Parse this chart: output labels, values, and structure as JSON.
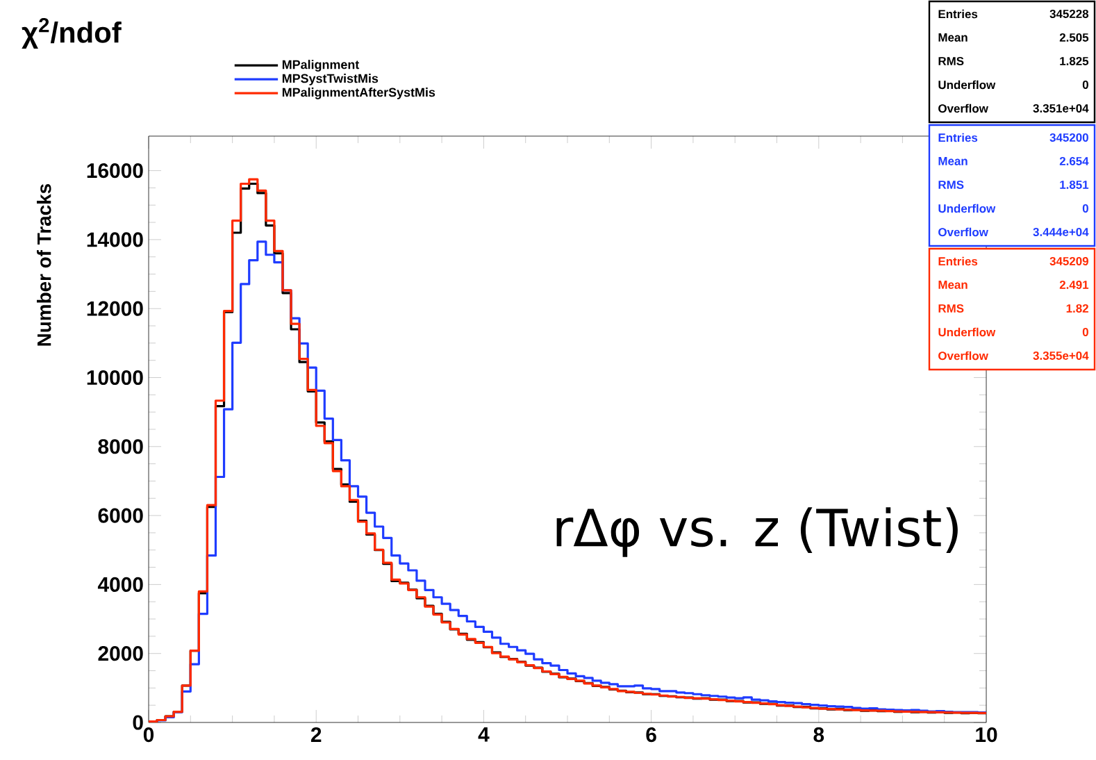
{
  "chart_data": {
    "type": "histogram",
    "title": "χ$^{2}$/ndof",
    "ylabel": "Number of Tracks",
    "bins": [
      0,
      0.1,
      0.2,
      0.3,
      0.4,
      0.5,
      0.6,
      0.7,
      0.8,
      0.9,
      1,
      1.1,
      1.2,
      1.3,
      1.4,
      1.5,
      1.6,
      1.7,
      1.8,
      1.9,
      2,
      2.1,
      2.2,
      2.3,
      2.4,
      2.5,
      2.6,
      2.7,
      2.8,
      2.9,
      3,
      3.1,
      3.2,
      3.3,
      3.4,
      3.5,
      3.6,
      3.7,
      3.8,
      3.9,
      4,
      4.1,
      4.2,
      4.3,
      4.4,
      4.5,
      4.6,
      4.7,
      4.8,
      4.9,
      5,
      5.1,
      5.2,
      5.3,
      5.4,
      5.5,
      5.6,
      5.7,
      5.8,
      5.9,
      6,
      6.1,
      6.2,
      6.3,
      6.4,
      6.5,
      6.6,
      6.7,
      6.8,
      6.9,
      7,
      7.1,
      7.2,
      7.3,
      7.4,
      7.5,
      7.6,
      7.7,
      7.8,
      7.9,
      8,
      8.1,
      8.2,
      8.3,
      8.4,
      8.5,
      8.6,
      8.7,
      8.8,
      8.9,
      9,
      9.1,
      9.2,
      9.3,
      9.4,
      9.5,
      9.6,
      9.7,
      9.8,
      9.9,
      10
    ],
    "series": [
      {
        "name": "MPalignment",
        "color": "#000000",
        "values": [
          30,
          70,
          180,
          310,
          1070,
          2080,
          3750,
          6250,
          9170,
          11900,
          14200,
          15480,
          15620,
          15350,
          14410,
          13600,
          12450,
          11400,
          10450,
          9600,
          8700,
          8150,
          7350,
          6900,
          6400,
          5850,
          5450,
          5000,
          4600,
          4100,
          4050,
          3850,
          3600,
          3380,
          3150,
          2920,
          2700,
          2570,
          2400,
          2330,
          2180,
          2030,
          1900,
          1840,
          1760,
          1650,
          1590,
          1470,
          1410,
          1310,
          1270,
          1200,
          1140,
          1060,
          1030,
          960,
          920,
          880,
          870,
          820,
          820,
          770,
          760,
          730,
          720,
          690,
          700,
          660,
          660,
          620,
          620,
          580,
          580,
          540,
          540,
          490,
          490,
          450,
          450,
          410,
          410,
          380,
          390,
          360,
          370,
          340,
          350,
          330,
          340,
          310,
          320,
          300,
          310,
          290,
          300,
          280,
          290,
          270,
          280,
          270
        ]
      },
      {
        "name": "MPSystTwistMis",
        "color": "#1f3cff",
        "values": [
          20,
          60,
          150,
          300,
          900,
          1690,
          3150,
          4840,
          7120,
          9080,
          11010,
          12710,
          13400,
          13940,
          13560,
          13340,
          12530,
          11720,
          10990,
          10290,
          9620,
          8810,
          8190,
          7600,
          6850,
          6550,
          6080,
          5680,
          5350,
          4840,
          4610,
          4410,
          4110,
          3840,
          3630,
          3440,
          3260,
          3090,
          2930,
          2770,
          2630,
          2460,
          2280,
          2190,
          2090,
          1990,
          1830,
          1720,
          1650,
          1520,
          1420,
          1340,
          1290,
          1210,
          1150,
          1110,
          1050,
          1050,
          1070,
          990,
          970,
          910,
          910,
          870,
          850,
          820,
          790,
          770,
          750,
          720,
          700,
          725,
          660,
          640,
          610,
          590,
          570,
          560,
          530,
          510,
          490,
          470,
          460,
          450,
          420,
          400,
          410,
          380,
          370,
          360,
          350,
          360,
          340,
          320,
          330,
          310,
          300,
          300,
          300,
          290
        ]
      },
      {
        "name": "MPalignmentAfterSystMis",
        "color": "#ff2a00",
        "values": [
          30,
          70,
          180,
          310,
          1070,
          2080,
          3800,
          6300,
          9330,
          11930,
          14550,
          15620,
          15750,
          15420,
          14550,
          13670,
          12530,
          11560,
          10540,
          9640,
          8600,
          8100,
          7290,
          6850,
          6450,
          5820,
          5480,
          5010,
          4630,
          4140,
          4030,
          3840,
          3630,
          3360,
          3130,
          2900,
          2710,
          2550,
          2420,
          2310,
          2190,
          2010,
          1910,
          1830,
          1750,
          1660,
          1580,
          1480,
          1400,
          1320,
          1260,
          1210,
          1130,
          1070,
          1020,
          970,
          910,
          890,
          860,
          830,
          810,
          780,
          750,
          740,
          710,
          700,
          690,
          670,
          650,
          630,
          610,
          590,
          570,
          550,
          530,
          500,
          480,
          460,
          440,
          420,
          400,
          390,
          380,
          370,
          360,
          350,
          345,
          340,
          330,
          320,
          315,
          310,
          305,
          300,
          295,
          290,
          285,
          280,
          280,
          275
        ]
      }
    ],
    "xlim": [
      0,
      10
    ],
    "ylim": [
      0,
      17000
    ],
    "xticks": [
      0,
      2,
      4,
      6,
      8,
      10
    ],
    "yticks": [
      0,
      2000,
      4000,
      6000,
      8000,
      10000,
      12000,
      14000,
      16000
    ],
    "grid": false,
    "legend": "top",
    "annotations": [
      "rΔφ vs. z (Twist)",
      "Entries",
      "345228",
      "Mean",
      "2.505",
      "RMS",
      "1.825",
      "Underflow",
      "0",
      "Overflow",
      "3.351e+04",
      "Entries",
      "345200",
      "Mean",
      "2.654",
      "RMS",
      "1.851",
      "Underflow",
      "0",
      "Overflow",
      "3.444e+04",
      "Entries",
      "345209",
      "Mean",
      "2.491",
      "RMS",
      "1.82",
      "Underflow",
      "0",
      "Overflow",
      "3.355e+04"
    ]
  }
}
